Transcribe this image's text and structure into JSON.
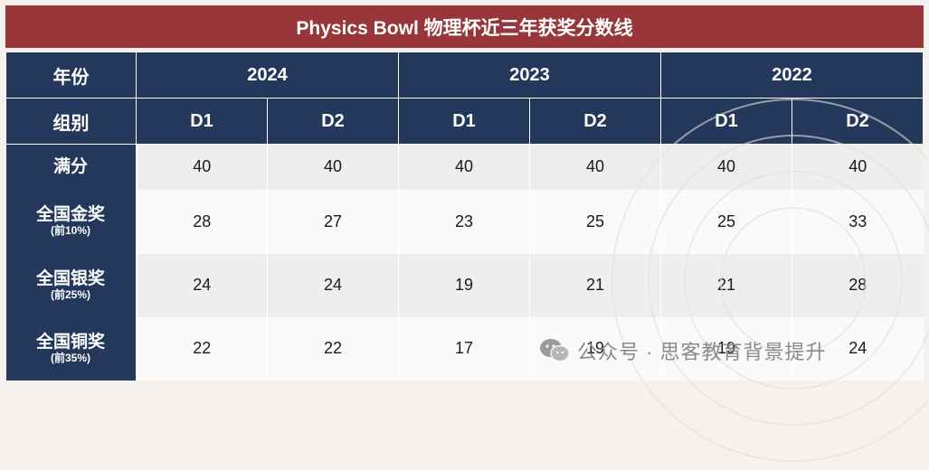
{
  "title": "Physics Bowl 物理杯近三年获奖分数线",
  "header": {
    "year_label": "年份",
    "group_label": "组别",
    "years": [
      "2024",
      "2023",
      "2022"
    ],
    "divisions": [
      "D1",
      "D2",
      "D1",
      "D2",
      "D1",
      "D2"
    ]
  },
  "rows": [
    {
      "label": "满分",
      "sub": "",
      "values": [
        "40",
        "40",
        "40",
        "40",
        "40",
        "40"
      ]
    },
    {
      "label": "全国金奖",
      "sub": "(前10%)",
      "values": [
        "28",
        "27",
        "23",
        "25",
        "25",
        "33"
      ]
    },
    {
      "label": "全国银奖",
      "sub": "(前25%)",
      "values": [
        "24",
        "24",
        "19",
        "21",
        "21",
        "28"
      ]
    },
    {
      "label": "全国铜奖",
      "sub": "(前35%)",
      "values": [
        "22",
        "22",
        "17",
        "19",
        "19",
        "24"
      ]
    }
  ],
  "watermark": {
    "text": "公众号 · 思客教育背景提升",
    "icon": "wechat-icon"
  },
  "colors": {
    "title_bg": "#98363a",
    "header_bg": "#23385b"
  }
}
